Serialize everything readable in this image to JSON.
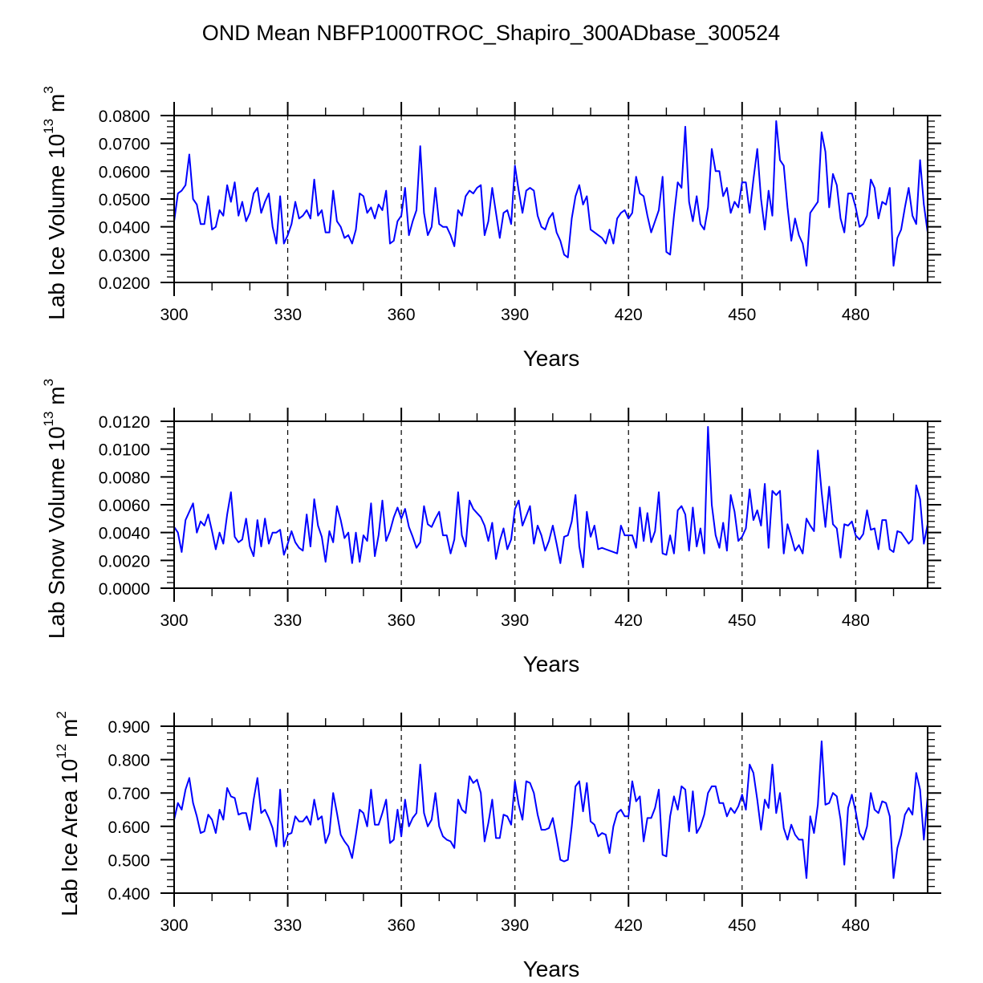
{
  "title": "OND Mean NBFP1000TROC_Shapiro_300ADbase_300524",
  "line_color": "#0000ff",
  "chart_data": [
    {
      "type": "line",
      "name": "lab-ice-volume",
      "ylabel": {
        "base": "Lab Ice Volume 10",
        "exp": "13",
        "unit": " m",
        "unit_exp": "3"
      },
      "xlabel": "Years",
      "xlim": [
        300,
        499
      ],
      "ylim": [
        0.02,
        0.08
      ],
      "yticks": [
        0.02,
        0.03,
        0.04,
        0.05,
        0.06,
        0.07,
        0.08
      ],
      "ytick_labels": [
        "0.0200",
        "0.0300",
        "0.0400",
        "0.0500",
        "0.0600",
        "0.0700",
        "0.0800"
      ],
      "xticks": [
        300,
        330,
        360,
        390,
        420,
        450,
        480
      ],
      "xtick_labels": [
        "300",
        "330",
        "360",
        "390",
        "420",
        "450",
        "480"
      ],
      "grid": "vertical dashed at major x ticks",
      "x_start": 300,
      "values": [
        0.042,
        0.052,
        0.053,
        0.055,
        0.066,
        0.05,
        0.048,
        0.041,
        0.041,
        0.051,
        0.039,
        0.04,
        0.046,
        0.044,
        0.055,
        0.049,
        0.056,
        0.044,
        0.049,
        0.042,
        0.045,
        0.052,
        0.054,
        0.045,
        0.049,
        0.052,
        0.04,
        0.034,
        0.051,
        0.034,
        0.037,
        0.041,
        0.049,
        0.043,
        0.044,
        0.046,
        0.043,
        0.057,
        0.044,
        0.046,
        0.038,
        0.038,
        0.053,
        0.042,
        0.04,
        0.036,
        0.037,
        0.034,
        0.039,
        0.052,
        0.051,
        0.045,
        0.047,
        0.043,
        0.048,
        0.046,
        0.053,
        0.034,
        0.035,
        0.042,
        0.044,
        0.054,
        0.037,
        0.042,
        0.046,
        0.069,
        0.045,
        0.037,
        0.04,
        0.054,
        0.041,
        0.04,
        0.04,
        0.037,
        0.033,
        0.046,
        0.044,
        0.051,
        0.053,
        0.052,
        0.054,
        0.055,
        0.037,
        0.042,
        0.054,
        0.045,
        0.036,
        0.045,
        0.046,
        0.041,
        0.062,
        0.053,
        0.045,
        0.053,
        0.054,
        0.053,
        0.044,
        0.04,
        0.039,
        0.043,
        0.045,
        0.038,
        0.035,
        0.03,
        0.029,
        0.043,
        0.051,
        0.055,
        0.048,
        0.051,
        0.039,
        0.038,
        0.037,
        0.036,
        0.034,
        0.039,
        0.034,
        0.043,
        0.045,
        0.046,
        0.043,
        0.045,
        0.058,
        0.052,
        0.051,
        0.044,
        0.038,
        0.042,
        0.046,
        0.058,
        0.031,
        0.03,
        0.044,
        0.056,
        0.054,
        0.076,
        0.049,
        0.042,
        0.051,
        0.041,
        0.039,
        0.047,
        0.068,
        0.06,
        0.06,
        0.051,
        0.054,
        0.045,
        0.049,
        0.047,
        0.056,
        0.056,
        0.045,
        0.057,
        0.068,
        0.05,
        0.039,
        0.053,
        0.044,
        0.078,
        0.064,
        0.062,
        0.047,
        0.035,
        0.043,
        0.037,
        0.034,
        0.026,
        0.045,
        0.047,
        0.049,
        0.074,
        0.067,
        0.047,
        0.059,
        0.055,
        0.043,
        0.038,
        0.052,
        0.052,
        0.047,
        0.04,
        0.041,
        0.044,
        0.057,
        0.054,
        0.043,
        0.049,
        0.048,
        0.054,
        0.026,
        0.036,
        0.039,
        0.047,
        0.054,
        0.044,
        0.041,
        0.064,
        0.048,
        0.038
      ]
    },
    {
      "type": "line",
      "name": "lab-snow-volume",
      "ylabel": {
        "base": "Lab Snow Volume 10",
        "exp": "13",
        "unit": " m",
        "unit_exp": "3"
      },
      "xlabel": "Years",
      "xlim": [
        300,
        499
      ],
      "ylim": [
        0.0,
        0.012
      ],
      "yticks": [
        0.0,
        0.002,
        0.004,
        0.006,
        0.008,
        0.01,
        0.012
      ],
      "ytick_labels": [
        "0.0000",
        "0.0020",
        "0.0040",
        "0.0060",
        "0.0080",
        "0.0100",
        "0.0120"
      ],
      "xticks": [
        300,
        330,
        360,
        390,
        420,
        450,
        480
      ],
      "xtick_labels": [
        "300",
        "330",
        "360",
        "390",
        "420",
        "450",
        "480"
      ],
      "grid": "vertical dashed at major x ticks",
      "x_start": 300,
      "values": [
        0.0044,
        0.004,
        0.0026,
        0.0049,
        0.0055,
        0.0061,
        0.004,
        0.0048,
        0.0045,
        0.0053,
        0.0041,
        0.0028,
        0.004,
        0.0032,
        0.0053,
        0.0069,
        0.0037,
        0.0033,
        0.0035,
        0.005,
        0.003,
        0.0023,
        0.0049,
        0.003,
        0.005,
        0.0032,
        0.004,
        0.004,
        0.0042,
        0.0024,
        0.0032,
        0.0041,
        0.0033,
        0.0029,
        0.0027,
        0.0053,
        0.003,
        0.0064,
        0.0045,
        0.0037,
        0.0019,
        0.0041,
        0.0033,
        0.0059,
        0.0049,
        0.0036,
        0.004,
        0.0018,
        0.004,
        0.0019,
        0.0038,
        0.0034,
        0.0061,
        0.0023,
        0.0038,
        0.0063,
        0.0034,
        0.0041,
        0.0051,
        0.0058,
        0.005,
        0.0057,
        0.0044,
        0.0037,
        0.0029,
        0.0033,
        0.0059,
        0.0046,
        0.0044,
        0.005,
        0.0055,
        0.0038,
        0.0038,
        0.0025,
        0.0035,
        0.0069,
        0.0038,
        0.003,
        0.0063,
        0.0057,
        0.0054,
        0.0051,
        0.0045,
        0.0034,
        0.0047,
        0.0021,
        0.0034,
        0.0043,
        0.0028,
        0.0035,
        0.0057,
        0.0063,
        0.0045,
        0.0052,
        0.0059,
        0.0032,
        0.0045,
        0.0038,
        0.0027,
        0.0034,
        0.0045,
        0.0032,
        0.0018,
        0.0037,
        0.0038,
        0.0048,
        0.0067,
        0.003,
        0.0015,
        0.0055,
        0.0037,
        0.0045,
        0.0028,
        0.0029,
        0.0028,
        0.0027,
        0.0026,
        0.0025,
        0.0045,
        0.0038,
        0.0038,
        0.0038,
        0.0029,
        0.0058,
        0.0034,
        0.0054,
        0.0033,
        0.0041,
        0.0069,
        0.0025,
        0.0024,
        0.0038,
        0.0025,
        0.0056,
        0.0059,
        0.0053,
        0.0027,
        0.0058,
        0.003,
        0.0043,
        0.0025,
        0.0116,
        0.006,
        0.0038,
        0.0029,
        0.0047,
        0.0027,
        0.0067,
        0.0055,
        0.0034,
        0.0037,
        0.0043,
        0.0071,
        0.0049,
        0.0056,
        0.0045,
        0.0075,
        0.0029,
        0.007,
        0.0067,
        0.007,
        0.0025,
        0.0046,
        0.0037,
        0.0027,
        0.0031,
        0.0025,
        0.005,
        0.0045,
        0.0041,
        0.0099,
        0.0069,
        0.0044,
        0.0073,
        0.0046,
        0.0043,
        0.0022,
        0.0046,
        0.0045,
        0.0048,
        0.0038,
        0.0035,
        0.0039,
        0.0056,
        0.0042,
        0.0043,
        0.0028,
        0.0049,
        0.0049,
        0.0028,
        0.0026,
        0.0041,
        0.004,
        0.0036,
        0.0032,
        0.0035,
        0.0074,
        0.0064,
        0.0032,
        0.0046
      ]
    },
    {
      "type": "line",
      "name": "lab-ice-area",
      "ylabel": {
        "base": "Lab Ice Area 10",
        "exp": "12",
        "unit": " m",
        "unit_exp": "2"
      },
      "xlabel": "Years",
      "xlim": [
        300,
        499
      ],
      "ylim": [
        0.4,
        0.9
      ],
      "yticks": [
        0.4,
        0.5,
        0.6,
        0.7,
        0.8,
        0.9
      ],
      "ytick_labels": [
        "0.400",
        "0.500",
        "0.600",
        "0.700",
        "0.800",
        "0.900"
      ],
      "xticks": [
        300,
        330,
        360,
        390,
        420,
        450,
        480
      ],
      "xtick_labels": [
        "300",
        "330",
        "360",
        "390",
        "420",
        "450",
        "480"
      ],
      "grid": "vertical dashed at major x ticks",
      "x_start": 300,
      "values": [
        0.62,
        0.67,
        0.65,
        0.71,
        0.745,
        0.67,
        0.63,
        0.58,
        0.585,
        0.635,
        0.62,
        0.58,
        0.65,
        0.62,
        0.715,
        0.69,
        0.685,
        0.635,
        0.64,
        0.64,
        0.59,
        0.68,
        0.745,
        0.64,
        0.65,
        0.625,
        0.595,
        0.54,
        0.71,
        0.54,
        0.575,
        0.58,
        0.63,
        0.615,
        0.615,
        0.63,
        0.605,
        0.68,
        0.62,
        0.63,
        0.55,
        0.58,
        0.7,
        0.64,
        0.575,
        0.555,
        0.54,
        0.505,
        0.575,
        0.65,
        0.64,
        0.6,
        0.71,
        0.605,
        0.605,
        0.64,
        0.68,
        0.55,
        0.56,
        0.65,
        0.57,
        0.68,
        0.6,
        0.625,
        0.64,
        0.785,
        0.64,
        0.6,
        0.62,
        0.7,
        0.6,
        0.57,
        0.56,
        0.555,
        0.535,
        0.68,
        0.65,
        0.64,
        0.75,
        0.73,
        0.74,
        0.7,
        0.555,
        0.61,
        0.68,
        0.565,
        0.565,
        0.635,
        0.63,
        0.605,
        0.735,
        0.665,
        0.62,
        0.735,
        0.73,
        0.7,
        0.635,
        0.59,
        0.59,
        0.595,
        0.625,
        0.565,
        0.5,
        0.495,
        0.5,
        0.6,
        0.72,
        0.735,
        0.645,
        0.73,
        0.615,
        0.605,
        0.57,
        0.58,
        0.575,
        0.52,
        0.6,
        0.64,
        0.65,
        0.63,
        0.63,
        0.735,
        0.675,
        0.69,
        0.555,
        0.625,
        0.625,
        0.655,
        0.71,
        0.515,
        0.51,
        0.63,
        0.69,
        0.65,
        0.72,
        0.71,
        0.585,
        0.705,
        0.58,
        0.6,
        0.635,
        0.7,
        0.72,
        0.72,
        0.67,
        0.67,
        0.63,
        0.655,
        0.64,
        0.66,
        0.695,
        0.65,
        0.785,
        0.76,
        0.68,
        0.59,
        0.68,
        0.655,
        0.785,
        0.64,
        0.7,
        0.595,
        0.56,
        0.605,
        0.575,
        0.56,
        0.56,
        0.445,
        0.63,
        0.58,
        0.665,
        0.855,
        0.665,
        0.67,
        0.7,
        0.69,
        0.62,
        0.485,
        0.655,
        0.695,
        0.645,
        0.58,
        0.56,
        0.6,
        0.7,
        0.65,
        0.64,
        0.675,
        0.67,
        0.63,
        0.445,
        0.535,
        0.575,
        0.635,
        0.655,
        0.635,
        0.76,
        0.71,
        0.56,
        0.69
      ]
    }
  ]
}
